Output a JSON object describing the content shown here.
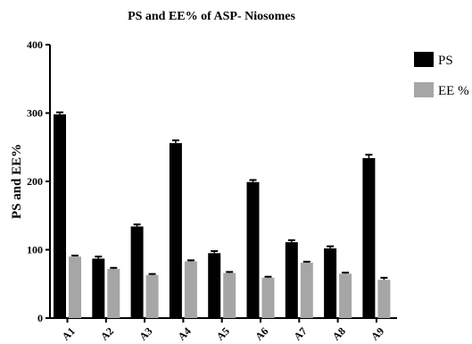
{
  "chart_data": {
    "type": "bar",
    "title": "PS and EE% of ASP- Niosomes",
    "xlabel": "",
    "ylabel": "PS and EE%",
    "ylim": [
      0,
      400
    ],
    "yticks": [
      "0",
      "100",
      "200",
      "300",
      "400"
    ],
    "categories": [
      "A1",
      "A2",
      "A3",
      "A4",
      "A5",
      "A6",
      "A7",
      "A8",
      "A9"
    ],
    "series": [
      {
        "name": "PS",
        "color": "#000000",
        "values": [
          298,
          87,
          134,
          256,
          95,
          199,
          111,
          102,
          234
        ],
        "errors": [
          3,
          3,
          3,
          4,
          3,
          3,
          3,
          3,
          5
        ]
      },
      {
        "name": "EE %",
        "color": "#a6a6a6",
        "values": [
          90,
          72,
          63,
          83,
          66,
          59,
          81,
          65,
          56
        ],
        "errors": [
          1.5,
          1.5,
          1.5,
          1.5,
          1.5,
          1.5,
          1.5,
          1.5,
          3
        ]
      }
    ],
    "legend_position": "top-right",
    "grid": false
  }
}
